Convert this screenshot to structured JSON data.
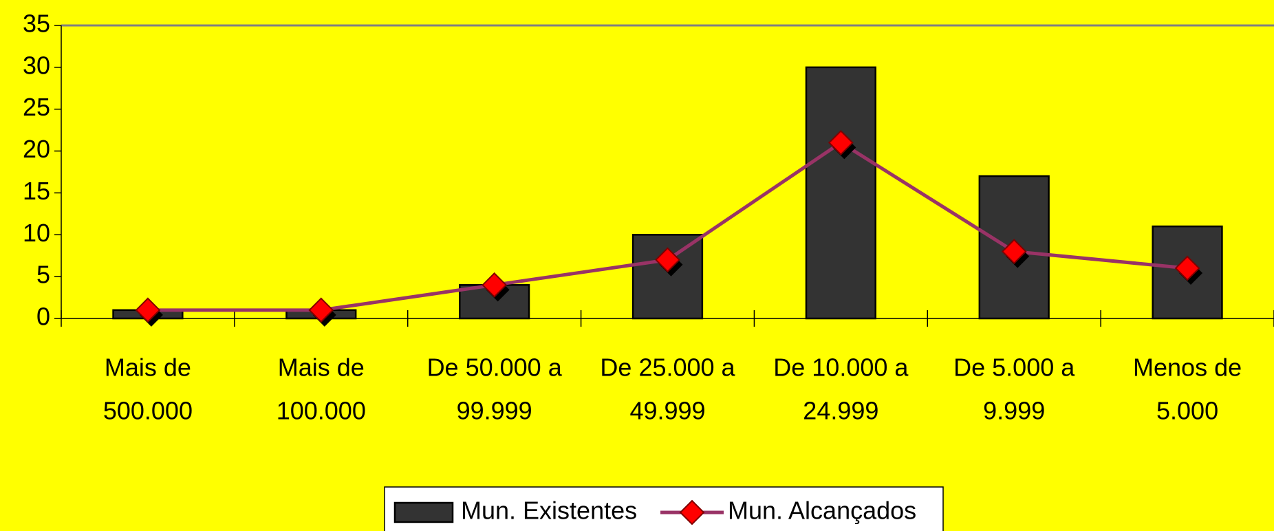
{
  "chart_data": {
    "type": "bar",
    "categories": [
      [
        "Mais de",
        "500.000"
      ],
      [
        "Mais de",
        "100.000"
      ],
      [
        "De 50.000 a",
        "99.999"
      ],
      [
        "De 25.000 a",
        "49.999"
      ],
      [
        "De 10.000 a",
        "24.999"
      ],
      [
        "De 5.000 a",
        "9.999"
      ],
      [
        "Menos de",
        "5.000"
      ]
    ],
    "series": [
      {
        "name": "Mun. Existentes",
        "type": "bar",
        "color": "#333333",
        "values": [
          1,
          1,
          4,
          10,
          30,
          17,
          11
        ]
      },
      {
        "name": "Mun. Alcançados",
        "type": "line",
        "color": "#993366",
        "marker_color": "#ff0000",
        "values": [
          1,
          1,
          4,
          7,
          21,
          8,
          6
        ]
      }
    ],
    "ylim": [
      0,
      35
    ],
    "yticks": [
      0,
      5,
      10,
      15,
      20,
      25,
      30,
      35
    ],
    "grid": false,
    "legend": "bottom"
  }
}
